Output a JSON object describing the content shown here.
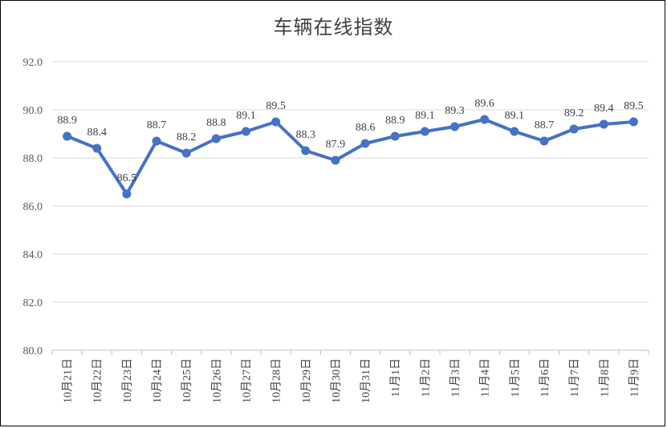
{
  "chart_data": {
    "type": "line",
    "title": "车辆在线指数",
    "xlabel": "",
    "ylabel": "",
    "ylim": [
      80,
      92
    ],
    "yticks": [
      "80.0",
      "82.0",
      "84.0",
      "86.0",
      "88.0",
      "90.0",
      "92.0"
    ],
    "categories": [
      "10月21日",
      "10月22日",
      "10月23日",
      "10月24日",
      "10月25日",
      "10月26日",
      "10月27日",
      "10月28日",
      "10月29日",
      "10月30日",
      "10月31日",
      "11月1日",
      "11月2日",
      "11月3日",
      "11月4日",
      "11月5日",
      "11月6日",
      "11月7日",
      "11月8日",
      "11月9日"
    ],
    "series": [
      {
        "values": [
          88.9,
          88.4,
          86.5,
          88.7,
          88.2,
          88.8,
          89.1,
          89.5,
          88.3,
          87.9,
          88.6,
          88.9,
          89.1,
          89.3,
          89.6,
          89.1,
          88.7,
          89.2,
          89.4,
          89.5
        ]
      }
    ],
    "labels": [
      "88.9",
      "88.4",
      "86.5",
      "88.7",
      "88.2",
      "88.8",
      "89.1",
      "89.5",
      "88.3",
      "87.9",
      "88.6",
      "88.9",
      "89.1",
      "89.3",
      "89.6",
      "89.1",
      "88.7",
      "89.2",
      "89.4",
      "89.5"
    ],
    "grid": true,
    "legend": "none",
    "colors": {
      "line": "#4472C4",
      "grid": "#D9D9D9",
      "axis": "#BFBFBF"
    }
  }
}
